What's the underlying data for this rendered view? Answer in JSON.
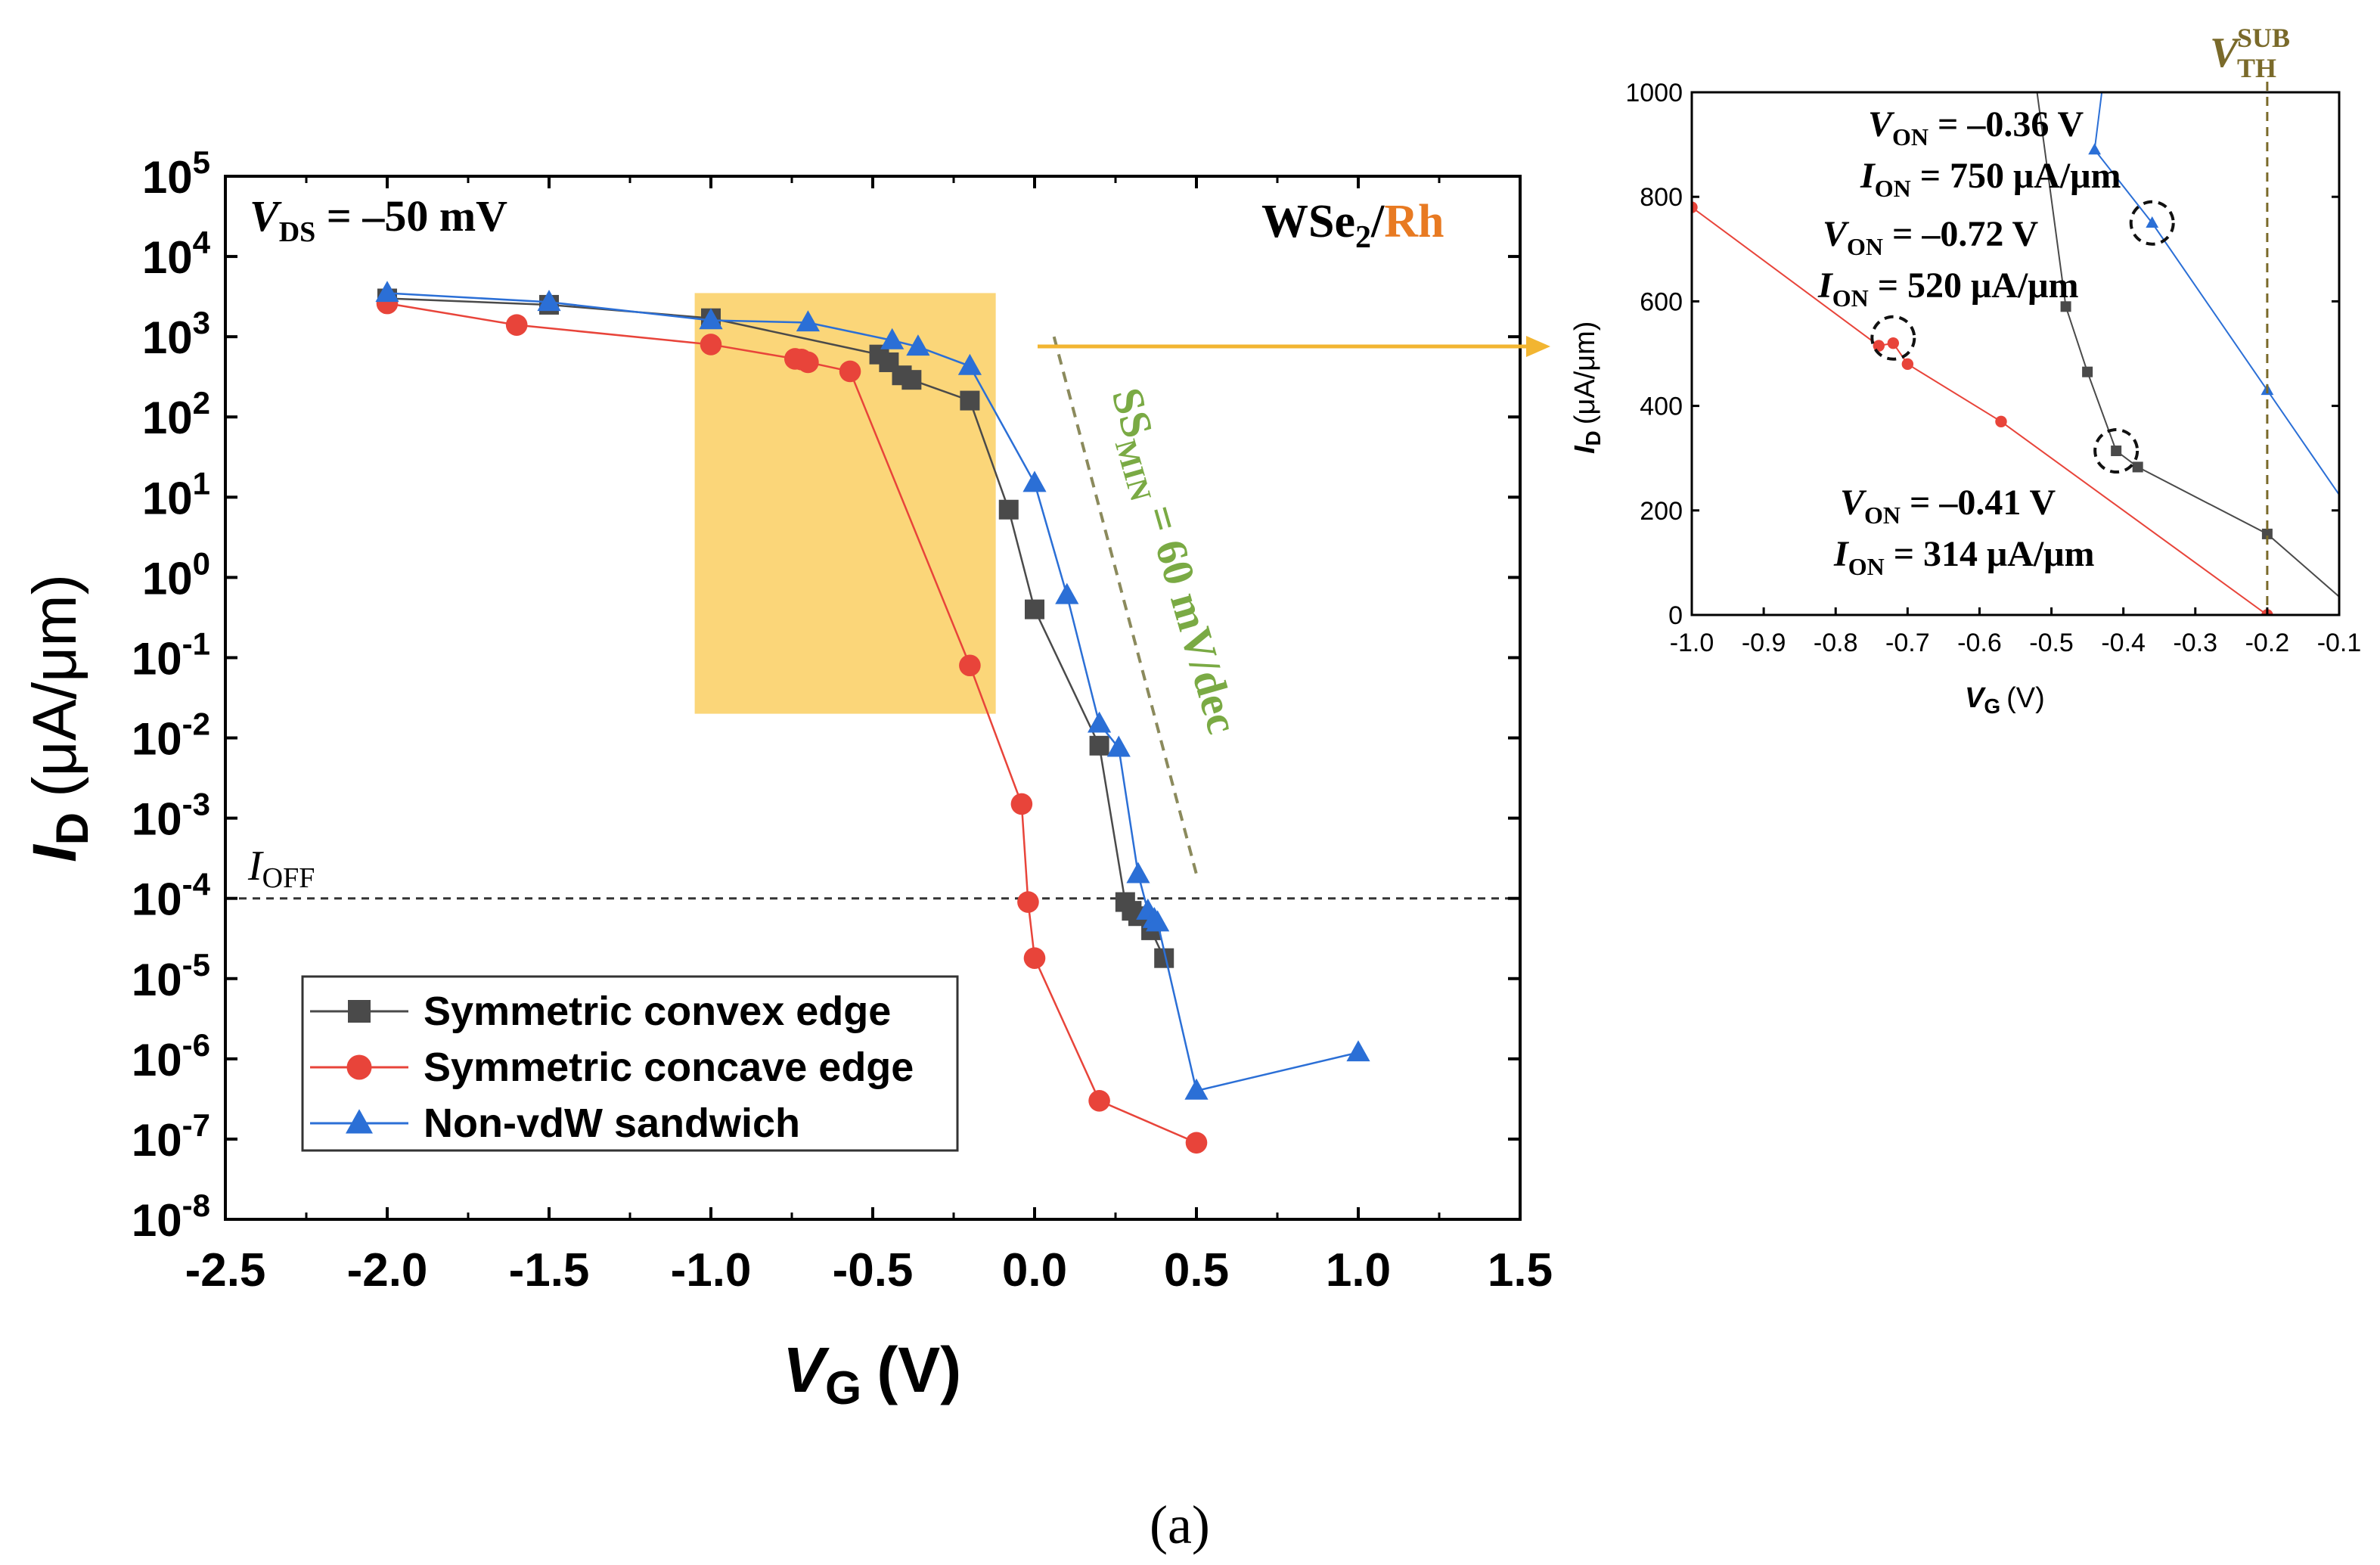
{
  "figure_label": "(a)",
  "colors": {
    "convex": "#4a4a4a",
    "concave": "#e8443a",
    "sandwich": "#2b6fd6",
    "highlight": "#fbd679",
    "arrow": "#f2b531",
    "ss_line": "#8b8a5c",
    "ss_text": "#7aaa44",
    "rh": "#e87a22",
    "vth": "#7a6a2a"
  },
  "chart_data": [
    {
      "id": "main",
      "type": "scatter",
      "scale": "log-y",
      "xlabel_main": "V",
      "xlabel_sub": "G",
      "xlabel_unit": "(V)",
      "ylabel_main": "I",
      "ylabel_sub": "D",
      "ylabel_unit": "(μA/μm)",
      "xlim": [
        -2.5,
        1.5
      ],
      "ylim_exp": [
        -8,
        5
      ],
      "xticks": [
        -2.5,
        -2.0,
        -1.5,
        -1.0,
        -0.5,
        0.0,
        0.5,
        1.0,
        1.5
      ],
      "xtick_labels": [
        "-2.5",
        "-2.0",
        "-1.5",
        "-1.0",
        "-0.5",
        "0.0",
        "0.5",
        "1.0",
        "1.5"
      ],
      "yticks_exp": [
        5,
        4,
        3,
        2,
        1,
        0,
        -1,
        -2,
        -3,
        -4,
        -5,
        -6,
        -7,
        -8
      ],
      "ytick_base": "10",
      "ytick_exponents": [
        "5",
        "4",
        "3",
        "2",
        "1",
        "0",
        "-1",
        "-2",
        "-3",
        "-4",
        "-5",
        "-6",
        "-7",
        "-8"
      ],
      "series": [
        {
          "name": "Symmetric convex edge",
          "marker": "square",
          "x": [
            -2.0,
            -1.5,
            -1.0,
            -0.48,
            -0.45,
            -0.41,
            -0.38,
            -0.2,
            -0.08,
            0.0,
            0.2,
            0.28,
            0.3,
            0.32,
            0.36,
            0.4
          ],
          "y": [
            3000,
            2500,
            1700,
            600,
            480,
            330,
            290,
            160,
            7,
            0.4,
            0.008,
            9e-05,
            7e-05,
            6e-05,
            4e-05,
            1.8e-05
          ]
        },
        {
          "name": "Symmetric concave edge",
          "marker": "circle",
          "x": [
            -2.0,
            -1.6,
            -1.0,
            -0.74,
            -0.72,
            -0.7,
            -0.57,
            -0.2,
            -0.04,
            -0.02,
            0.0,
            0.2,
            0.5
          ],
          "y": [
            2600,
            1400,
            800,
            530,
            520,
            480,
            370,
            0.08,
            0.0015,
            9e-05,
            1.8e-05,
            3e-07,
            9e-08
          ]
        },
        {
          "name": "Non-vdW sandwich",
          "marker": "triangle",
          "x": [
            -2.0,
            -1.5,
            -1.0,
            -0.7,
            -0.44,
            -0.36,
            -0.2,
            0.0,
            0.1,
            0.2,
            0.26,
            0.32,
            0.35,
            0.37,
            0.38,
            0.5,
            1.0
          ],
          "y": [
            3500,
            2700,
            1600,
            1500,
            900,
            750,
            430,
            15,
            0.6,
            0.015,
            0.0075,
            0.0002,
            7e-05,
            5.5e-05,
            5e-05,
            4e-07,
            1.2e-06
          ]
        }
      ],
      "annotations": {
        "vds_v": "V",
        "vds_sub": "DS",
        "vds_value": " = –50 mV",
        "material_1": "WSe",
        "material_sub": "2",
        "material_2": "/",
        "material_3": "Rh",
        "ioff_i": "I",
        "ioff_sub": "OFF",
        "ioff_level": 0.0001,
        "ss_text": "SS",
        "ss_sub": "MIN",
        "ss_value": " = 60 mV/dec",
        "highlight_x": [
          -1.05,
          -0.12
        ],
        "highlight_y": [
          3500,
          0.02
        ]
      }
    },
    {
      "id": "inset",
      "type": "scatter",
      "scale": "linear",
      "xlabel_main": "V",
      "xlabel_sub": "G",
      "xlabel_unit": "(V)",
      "ylabel_main": "I",
      "ylabel_sub": "D",
      "ylabel_unit": "(μA/μm)",
      "xlim": [
        -1.0,
        -0.1
      ],
      "ylim": [
        0,
        1000
      ],
      "xticks": [
        -1.0,
        -0.9,
        -0.8,
        -0.7,
        -0.6,
        -0.5,
        -0.4,
        -0.3,
        -0.2,
        -0.1
      ],
      "xtick_labels": [
        "-1.0",
        "-0.9",
        "-0.8",
        "-0.7",
        "-0.6",
        "-0.5",
        "-0.4",
        "-0.3",
        "-0.2",
        "-0.1"
      ],
      "yticks": [
        0,
        200,
        400,
        600,
        800,
        1000
      ],
      "ytick_labels": [
        "0",
        "200",
        "400",
        "600",
        "800",
        "1000"
      ],
      "series": [
        {
          "name": "Symmetric convex edge",
          "marker": "square",
          "x": [
            -0.52,
            -0.48,
            -0.45,
            -0.41,
            -0.38,
            -0.2,
            -0.1
          ],
          "y": [
            1000,
            590,
            465,
            314,
            283,
            155,
            35
          ],
          "marker_from": 1,
          "marker_to": 6
        },
        {
          "name": "Symmetric concave edge",
          "marker": "circle",
          "x": [
            -1.0,
            -0.74,
            -0.72,
            -0.7,
            -0.57,
            -0.2
          ],
          "y": [
            780,
            515,
            520,
            480,
            370,
            0
          ],
          "marker_from": 0,
          "marker_to": 6
        },
        {
          "name": "Non-vdW sandwich",
          "marker": "triangle",
          "x": [
            -0.43,
            -0.44,
            -0.36,
            -0.2,
            -0.1
          ],
          "y": [
            1000,
            890,
            750,
            430,
            230
          ],
          "marker_from": 1,
          "marker_to": 4
        }
      ],
      "vth_x": -0.2,
      "vth_v": "V",
      "vth_sub": "TH",
      "vth_sup": "SUB",
      "circles": [
        {
          "x": -0.36,
          "y": 750
        },
        {
          "x": -0.72,
          "y": 530
        },
        {
          "x": -0.41,
          "y": 314
        }
      ],
      "labels": [
        {
          "von_v": "V",
          "von_sub": "ON",
          "von_value": " = –0.36 V",
          "ion_i": "I",
          "ion_sub": "ON",
          "ion_value": " = 750 μA/μm"
        },
        {
          "von_v": "V",
          "von_sub": "ON",
          "von_value": " = –0.72 V",
          "ion_i": "I",
          "ion_sub": "ON",
          "ion_value": " = 520 μA/μm"
        },
        {
          "von_v": "V",
          "von_sub": "ON",
          "von_value": " = –0.41 V",
          "ion_i": "I",
          "ion_sub": "ON",
          "ion_value": " = 314 μA/μm"
        }
      ]
    }
  ]
}
